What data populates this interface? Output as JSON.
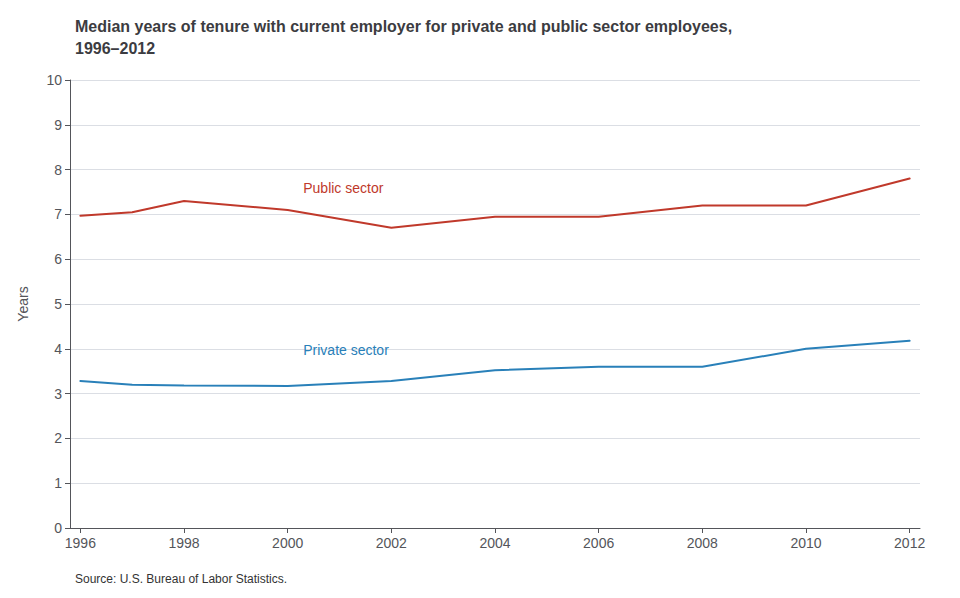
{
  "chart_data": {
    "type": "line",
    "title": "Median years of tenure with current employer for private and public sector employees,\n1996–2012",
    "ylabel": "Years",
    "source": "Source: U.S. Bureau of Labor Statistics.",
    "x": [
      1996,
      1997,
      1998,
      2000,
      2002,
      2004,
      2006,
      2008,
      2010,
      2012
    ],
    "series": [
      {
        "color": "#c0392b",
        "values": [
          6.97,
          7.05,
          7.3,
          7.1,
          6.7,
          6.95,
          6.95,
          7.2,
          7.2,
          7.8
        ]
      },
      {
        "color": "#2980b9",
        "values": [
          3.28,
          3.2,
          3.18,
          3.17,
          3.28,
          3.52,
          3.6,
          3.6,
          4.0,
          4.18
        ]
      }
    ],
    "annotations": [
      {
        "text": "Public sector",
        "x": 2000.3,
        "y": 7.58,
        "color": "#c0392b"
      },
      {
        "text": "Private sector",
        "x": 2000.3,
        "y": 3.97,
        "color": "#2980b9"
      }
    ],
    "xlim": [
      1995.8,
      2012.2
    ],
    "xticks": [
      1996,
      1998,
      2000,
      2002,
      2004,
      2006,
      2008,
      2010,
      2012
    ],
    "ylim": [
      0,
      10
    ],
    "yticks": [
      0,
      1,
      2,
      3,
      4,
      5,
      6,
      7,
      8,
      9,
      10
    ],
    "grid": true
  }
}
